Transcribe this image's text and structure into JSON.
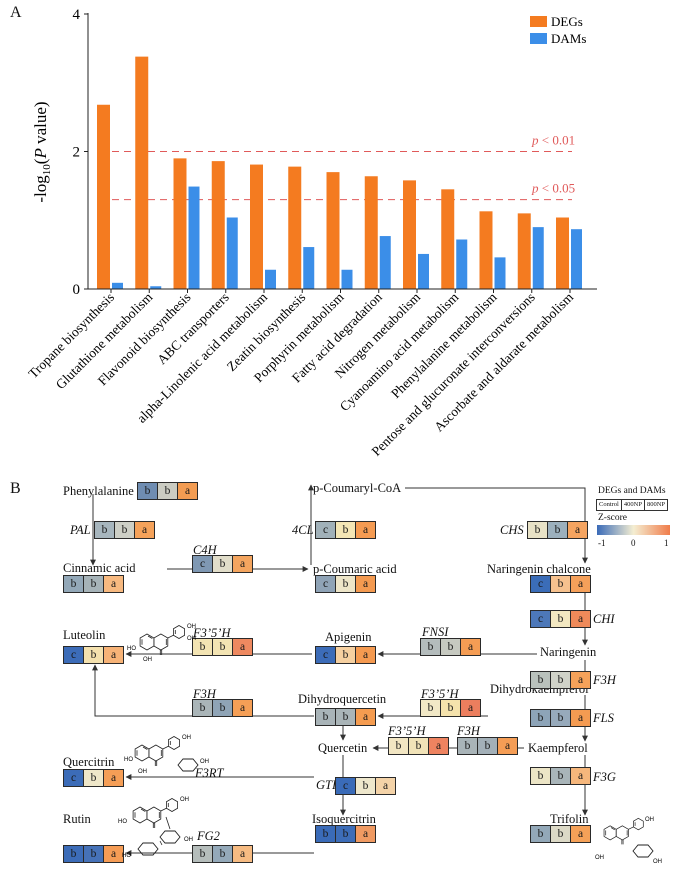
{
  "panel_labels": {
    "a": "A",
    "b": "B"
  },
  "chart_data": {
    "type": "bar",
    "categories": [
      "Tropane biosynthesis",
      "Glutathione metabolism",
      "Flavonoid biosynthesis",
      "ABC transporters",
      "alpha-Linolenic acid metabolism",
      "Zeatin biosynthesis",
      "Porphyrin metabolism",
      "Fatty acid degradation",
      "Nitrogen metabolism",
      "Cyanoamino acid metabolism",
      "Phenylalanine metabolism",
      "Pentose and glucuronate interconversions",
      "Ascorbate and aldarate metabolism"
    ],
    "series": [
      {
        "name": "DEGs",
        "color": "#f47b20",
        "values": [
          2.68,
          3.38,
          1.9,
          1.86,
          1.81,
          1.78,
          1.7,
          1.64,
          1.58,
          1.45,
          1.13,
          1.1,
          1.04
        ]
      },
      {
        "name": "DAMs",
        "color": "#3b8ee8",
        "values": [
          0.09,
          0.04,
          1.49,
          1.04,
          0.28,
          0.61,
          0.28,
          0.77,
          0.51,
          0.72,
          0.46,
          0.9,
          0.87
        ]
      }
    ],
    "xlabel": "",
    "ylabel": "-log10(P value)",
    "ylim": [
      0,
      4
    ],
    "yticks": [
      0,
      2,
      4
    ],
    "thresholds": [
      {
        "value": 2,
        "label": "p < 0.01",
        "color": "#e05a5a"
      },
      {
        "value": 1.3,
        "label": "p < 0.05",
        "color": "#e05a5a"
      }
    ],
    "grid": false,
    "legend_position": "top-right"
  },
  "pathway": {
    "metabolites": {
      "phenylalanine": "Phenylalanine",
      "cinnamic_acid": "Cinnamic acid",
      "p_coumaric_acid": "p-Coumaric acid",
      "p_coumaryl_coa": "p-Coumaryl-CoA",
      "naringenin_chalcone": "Naringenin chalcone",
      "naringenin": "Naringenin",
      "apigenin": "Apigenin",
      "luteolin": "Luteolin",
      "dihydrokaempferol": "Dihydrokaempferol",
      "dihydroquercetin": "Dihydroquercetin",
      "kaempferol": "Kaempferol",
      "quercetin": "Quercetin",
      "quercitrin": "Quercitrin",
      "isoquercitrin": "Isoquercitrin",
      "rutin": "Rutin",
      "trifolin": "Trifolin"
    },
    "enzymes": {
      "pal": "PAL",
      "c4h": "C4H",
      "cl4": "4CL",
      "chs": "CHS",
      "chi": "CHI",
      "f3h": "F3H",
      "fls": "FLS",
      "f3g": "F3G",
      "fnsi": "FNSI",
      "f3p5ph": "F3’5’H",
      "f3rt": "F3RT",
      "gti": "GTI",
      "fg2": "FG2"
    },
    "boxes": {
      "phenylalanine": {
        "cells": [
          {
            "t": "b",
            "c": "#6f8db2"
          },
          {
            "t": "b",
            "c": "#cbccc2"
          },
          {
            "t": "a",
            "c": "#f39c52"
          }
        ]
      },
      "pal": {
        "cells": [
          {
            "t": "b",
            "c": "#a7b6be"
          },
          {
            "t": "b",
            "c": "#cdcfc6"
          },
          {
            "t": "a",
            "c": "#f5a25a"
          }
        ]
      },
      "cinnamic_acid": {
        "cells": [
          {
            "t": "b",
            "c": "#93a8b8"
          },
          {
            "t": "b",
            "c": "#a6b3b8"
          },
          {
            "t": "a",
            "c": "#f7b980"
          }
        ]
      },
      "c4h": {
        "cells": [
          {
            "t": "c",
            "c": "#7f98b3"
          },
          {
            "t": "b",
            "c": "#e1ddc9"
          },
          {
            "t": "a",
            "c": "#f4a55f"
          }
        ]
      },
      "p_coumaric_acid": {
        "cells": [
          {
            "t": "c",
            "c": "#8fa3b6"
          },
          {
            "t": "b",
            "c": "#ede5c8"
          },
          {
            "t": "a",
            "c": "#f49a50"
          }
        ]
      },
      "cl4": {
        "cells": [
          {
            "t": "c",
            "c": "#a1b1b9"
          },
          {
            "t": "b",
            "c": "#f4e6b5"
          },
          {
            "t": "a",
            "c": "#f59b52"
          }
        ]
      },
      "chs": {
        "cells": [
          {
            "t": "b",
            "c": "#e8e2c6"
          },
          {
            "t": "b",
            "c": "#9cb0bd"
          },
          {
            "t": "a",
            "c": "#f5a460"
          }
        ]
      },
      "naringenin_chalcone": {
        "cells": [
          {
            "t": "c",
            "c": "#3b6db8"
          },
          {
            "t": "b",
            "c": "#f6c18e"
          },
          {
            "t": "a",
            "c": "#f5a05a"
          }
        ]
      },
      "chi": {
        "cells": [
          {
            "t": "c",
            "c": "#4d78b9"
          },
          {
            "t": "b",
            "c": "#f3e8c1"
          },
          {
            "t": "a",
            "c": "#ef8a5a"
          }
        ]
      },
      "f3h_right": {
        "cells": [
          {
            "t": "b",
            "c": "#b9c1bc"
          },
          {
            "t": "b",
            "c": "#d0d2c8"
          },
          {
            "t": "a",
            "c": "#f5a25a"
          }
        ]
      },
      "fls": {
        "cells": [
          {
            "t": "b",
            "c": "#8da4b8"
          },
          {
            "t": "b",
            "c": "#97aabb"
          },
          {
            "t": "a",
            "c": "#f49b52"
          }
        ]
      },
      "f3g": {
        "cells": [
          {
            "t": "b",
            "c": "#ece5c6"
          },
          {
            "t": "b",
            "c": "#a9b5b9"
          },
          {
            "t": "a",
            "c": "#f6b77c"
          }
        ]
      },
      "trifolin": {
        "cells": [
          {
            "t": "b",
            "c": "#93a8b8"
          },
          {
            "t": "b",
            "c": "#dcd9c6"
          },
          {
            "t": "a",
            "c": "#f5a158"
          }
        ]
      },
      "fnsi": {
        "cells": [
          {
            "t": "b",
            "c": "#b4bcbc"
          },
          {
            "t": "b",
            "c": "#c6c9c0"
          },
          {
            "t": "a",
            "c": "#f59d54"
          }
        ]
      },
      "apigenin": {
        "cells": [
          {
            "t": "c",
            "c": "#3c6cb8"
          },
          {
            "t": "b",
            "c": "#f6d0a0"
          },
          {
            "t": "a",
            "c": "#f59a50"
          }
        ]
      },
      "f3p5ph_top": {
        "cells": [
          {
            "t": "b",
            "c": "#f3e4b3"
          },
          {
            "t": "b",
            "c": "#f3e4b3"
          },
          {
            "t": "a",
            "c": "#ee8960"
          }
        ]
      },
      "luteolin": {
        "cells": [
          {
            "t": "c",
            "c": "#3c6cb8"
          },
          {
            "t": "b",
            "c": "#f4e1ae"
          },
          {
            "t": "a",
            "c": "#f7b377"
          }
        ]
      },
      "f3h_mid": {
        "cells": [
          {
            "t": "b",
            "c": "#aab5b8"
          },
          {
            "t": "b",
            "c": "#8fa4b6"
          },
          {
            "t": "a",
            "c": "#f59f56"
          }
        ]
      },
      "dihydroquercetin": {
        "cells": [
          {
            "t": "b",
            "c": "#a9b4b8"
          },
          {
            "t": "b",
            "c": "#aab5b8"
          },
          {
            "t": "a",
            "c": "#f59c50"
          }
        ]
      },
      "f3p5ph_right": {
        "cells": [
          {
            "t": "b",
            "c": "#f1e8c6"
          },
          {
            "t": "b",
            "c": "#f4e2ac"
          },
          {
            "t": "a",
            "c": "#ec7e5e"
          }
        ]
      },
      "f3p5ph_low": {
        "cells": [
          {
            "t": "b",
            "c": "#f2e6c3"
          },
          {
            "t": "b",
            "c": "#f1e3b8"
          },
          {
            "t": "a",
            "c": "#ee8360"
          }
        ]
      },
      "f3h_low": {
        "cells": [
          {
            "t": "b",
            "c": "#a9b4b8"
          },
          {
            "t": "b",
            "c": "#a3b0b8"
          },
          {
            "t": "a",
            "c": "#f59d55"
          }
        ]
      },
      "quercitrin": {
        "cells": [
          {
            "t": "c",
            "c": "#3c6cb8"
          },
          {
            "t": "b",
            "c": "#efe7c9"
          },
          {
            "t": "a",
            "c": "#f59e56"
          }
        ]
      },
      "gti": {
        "cells": [
          {
            "t": "c",
            "c": "#3a6bb8"
          },
          {
            "t": "b",
            "c": "#eee7cc"
          },
          {
            "t": "a",
            "c": "#f4d3a8"
          }
        ]
      },
      "isoquercitrin": {
        "cells": [
          {
            "t": "b",
            "c": "#3a6bb8"
          },
          {
            "t": "b",
            "c": "#3d6db8"
          },
          {
            "t": "a",
            "c": "#f09a62"
          }
        ]
      },
      "fg2": {
        "cells": [
          {
            "t": "b",
            "c": "#b5bdbb"
          },
          {
            "t": "b",
            "c": "#94a9b9"
          },
          {
            "t": "a",
            "c": "#f6bb82"
          }
        ]
      },
      "rutin": {
        "cells": [
          {
            "t": "b",
            "c": "#3c6cb8"
          },
          {
            "t": "b",
            "c": "#4672b8"
          },
          {
            "t": "a",
            "c": "#f59c55"
          }
        ]
      }
    }
  },
  "heatmap_legend": {
    "title": "DEGs and DAMs",
    "groups": [
      "Control",
      "400NP",
      "800NP"
    ],
    "zscore_title": "Z-score",
    "ticks": [
      "-1",
      "0",
      "1"
    ],
    "gradient": [
      "#3a6bb8",
      "#f4eed2",
      "#f07c4a"
    ]
  },
  "structures": {
    "oh": "OH",
    "ho": "HO",
    "o": "O"
  }
}
